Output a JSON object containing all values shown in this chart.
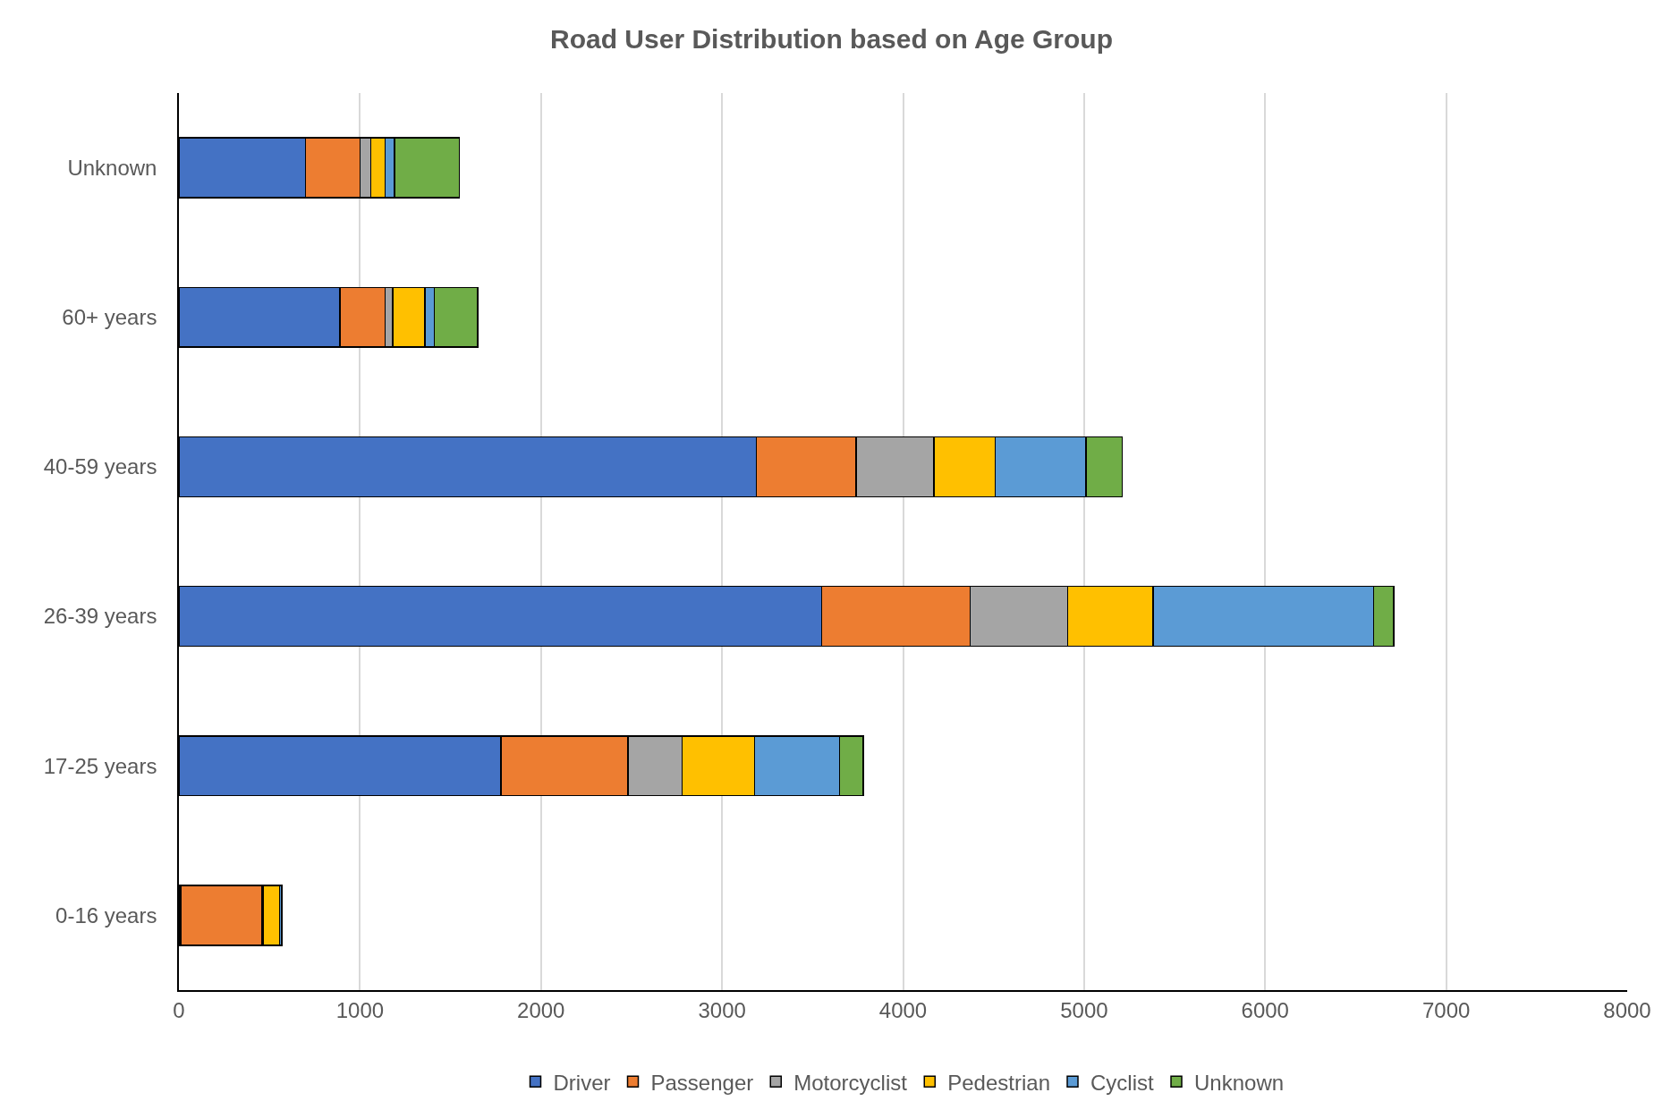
{
  "chart_data": {
    "type": "bar",
    "orientation": "horizontal",
    "stacked": true,
    "title": "Road User Distribution based on Age Group",
    "categories": [
      "Unknown",
      "60+ years",
      "40-59 years",
      "26-39 years",
      "17-25 years",
      "0-16 years"
    ],
    "series": [
      {
        "name": "Driver",
        "color": "#4472c4",
        "values": [
          700,
          890,
          3190,
          3550,
          1780,
          10
        ]
      },
      {
        "name": "Passenger",
        "color": "#ed7d31",
        "values": [
          300,
          250,
          550,
          820,
          700,
          450
        ]
      },
      {
        "name": "Motorcyclist",
        "color": "#a5a5a5",
        "values": [
          60,
          40,
          430,
          540,
          300,
          5
        ]
      },
      {
        "name": "Pedestrian",
        "color": "#ffc000",
        "values": [
          80,
          180,
          340,
          470,
          400,
          90
        ]
      },
      {
        "name": "Cyclist",
        "color": "#5b9bd5",
        "values": [
          50,
          50,
          500,
          1220,
          470,
          10
        ]
      },
      {
        "name": "Unknown",
        "color": "#70ad47",
        "values": [
          360,
          240,
          200,
          110,
          130,
          5
        ]
      }
    ],
    "xlim": [
      0,
      8000
    ],
    "xticks": [
      0,
      1000,
      2000,
      3000,
      4000,
      5000,
      6000,
      7000,
      8000
    ],
    "grid": "x",
    "legend": "bottom"
  }
}
